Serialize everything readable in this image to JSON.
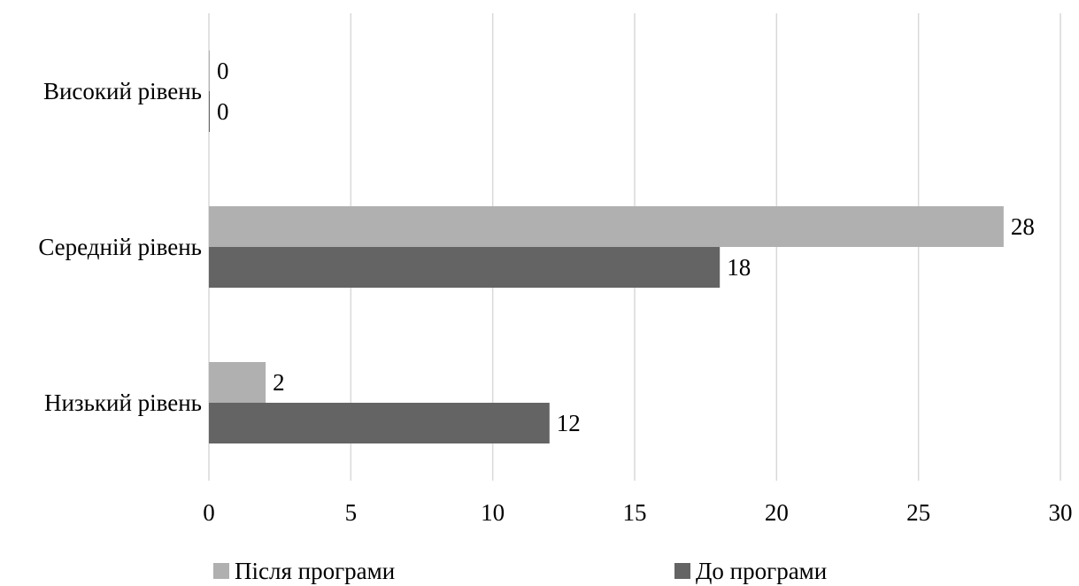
{
  "chart_data": {
    "type": "bar",
    "orientation": "horizontal",
    "categories": [
      "Високий рівень",
      "Середній рівень",
      "Низький рівень"
    ],
    "series": [
      {
        "name": "Після програми",
        "values": [
          0,
          28,
          2
        ],
        "color": "#b0b0b0"
      },
      {
        "name": "До програми",
        "values": [
          0,
          18,
          12
        ],
        "color": "#646464"
      }
    ],
    "xlim": [
      0,
      30
    ],
    "xticks": [
      0,
      5,
      10,
      15,
      20,
      25,
      30
    ],
    "grid": true,
    "legend_position": "bottom",
    "title": "",
    "xlabel": "",
    "ylabel": ""
  }
}
